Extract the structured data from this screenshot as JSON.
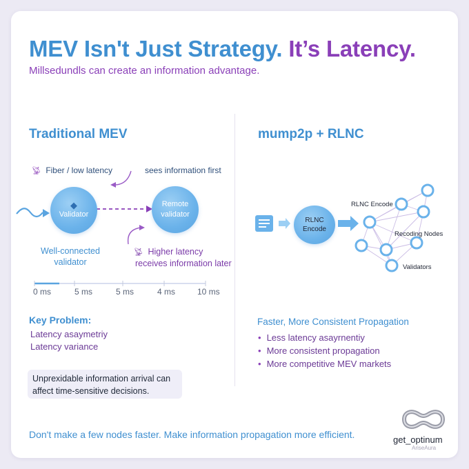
{
  "title": {
    "part1": "MEV Isn't Just Strategy.",
    "part2": "It’s Latency."
  },
  "subtitle": "Millsedundls can create an information advantage.",
  "left": {
    "heading": "Traditional MEV",
    "fiber_label": "Fiber / low latency",
    "sees_label": "sees information first",
    "validator_label": "Validator",
    "remote_label_line1": "Remote",
    "remote_label_line2": "validator",
    "well_connected_line1": "Well-connected",
    "well_connected_line2": "validator",
    "higher_latency_line1": "Higher latency",
    "higher_latency_line2": "receives information later",
    "timeline_ticks": [
      "0 ms",
      "5 ms",
      "5 ms",
      "4 ms",
      "10 ms"
    ],
    "key_problem_heading": "Key Problem:",
    "problems": [
      "Latency asaymetriy",
      "Latency variance"
    ],
    "problem_box_line1": "Unprexidable information arrival can",
    "problem_box_line2": "affect time-sensitive decisions."
  },
  "right": {
    "heading": "mump2p + RLNC",
    "encode_node_label": "RLNC Encode",
    "network_top_label": "RLNC Encode",
    "recoding_label": "Recoding Nodes",
    "validators_label": "Validators",
    "benefits_heading": "Faster, More Consistent Propagation",
    "benefits": [
      "Less latency asayrnentiy",
      "More consistent propagation",
      "More competitive MEV markets"
    ]
  },
  "footer": "Don't make a few nodes faster. Make information propagation more efficient.",
  "brand": {
    "name": "get_optinum",
    "sub": "AriseAura"
  },
  "colors": {
    "blue": "#3f8fd0",
    "purple": "#8a3fb8",
    "node": "#6ab2ea"
  },
  "icons": {
    "satellite": "satellite-dish-icon",
    "ethereum": "ethereum-icon",
    "document": "document-icon",
    "brand": "optinum-logo"
  }
}
